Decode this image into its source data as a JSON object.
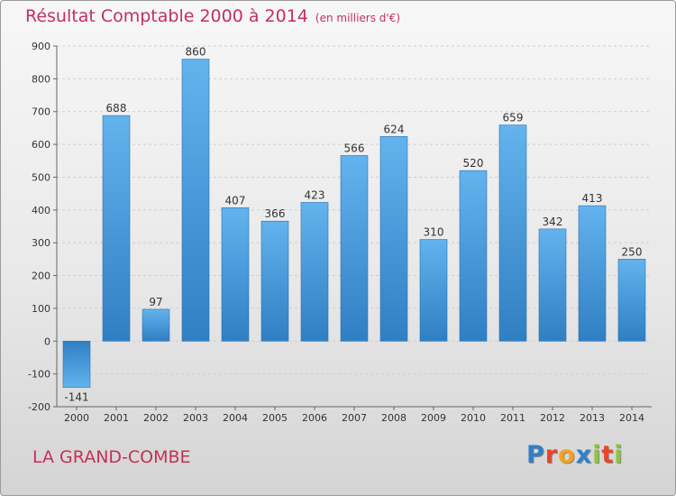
{
  "chart_data": {
    "type": "bar",
    "title": "Résultat Comptable 2000 à 2014",
    "subtitle": "(en milliers d'€)",
    "xlabel": "",
    "ylabel": "",
    "ylim": [
      -200,
      900
    ],
    "yticks": [
      -200,
      -100,
      0,
      100,
      200,
      300,
      400,
      500,
      600,
      700,
      800,
      900
    ],
    "ytick_labels": [
      "-200",
      "-100",
      "0",
      "100",
      "200",
      "300",
      "400",
      "500",
      "600",
      "700",
      "800",
      "900"
    ],
    "categories": [
      "2000",
      "2001",
      "2002",
      "2003",
      "2004",
      "2005",
      "2006",
      "2007",
      "2008",
      "2009",
      "2010",
      "2011",
      "2012",
      "2013",
      "2014"
    ],
    "values": [
      -141,
      688,
      97,
      860,
      407,
      366,
      423,
      566,
      624,
      310,
      520,
      659,
      342,
      413,
      250
    ],
    "value_labels": [
      "-141",
      "688",
      "97",
      "860",
      "407",
      "366",
      "423",
      "566",
      "624",
      "310",
      "520",
      "659",
      "342",
      "413",
      "250"
    ],
    "grid": true,
    "legend": "none",
    "bar_color": "#4d9fe0"
  },
  "footer": {
    "city": "LA GRAND-COMBE",
    "brand_letters": [
      {
        "char": "P",
        "color": "#2e80c8"
      },
      {
        "char": "r",
        "color": "#e8462a"
      },
      {
        "char": "o",
        "color": "#f4a21b"
      },
      {
        "char": "x",
        "color": "#2e80c8"
      },
      {
        "char": "i",
        "color": "#8cc63f"
      },
      {
        "char": "t",
        "color": "#e8462a"
      },
      {
        "char": "i",
        "color": "#8cc63f"
      }
    ]
  }
}
